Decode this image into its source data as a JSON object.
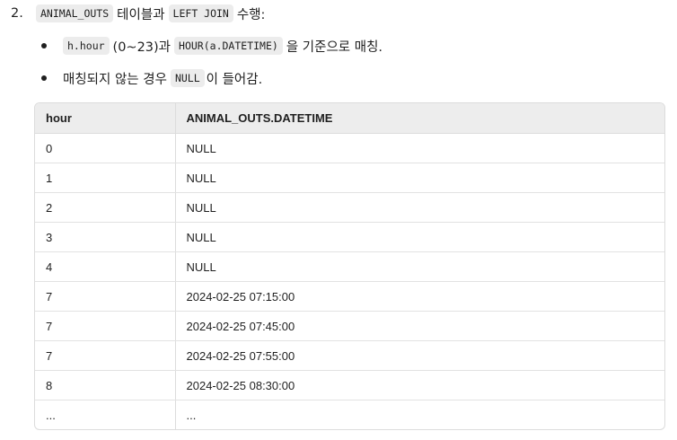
{
  "step": {
    "number": "2.",
    "code1": "ANIMAL_OUTS",
    "text1": "테이블과",
    "code2": "LEFT JOIN",
    "text2": "수행:"
  },
  "bullets": [
    {
      "code1": "h.hour",
      "text1": "(0~23)과",
      "code2": "HOUR(a.DATETIME)",
      "text2": "을 기준으로 매칭."
    },
    {
      "text1": "매칭되지 않는 경우",
      "code1": "NULL",
      "text2": "이 들어감."
    }
  ],
  "table": {
    "headers": [
      "hour",
      "ANIMAL_OUTS.DATETIME"
    ],
    "rows": [
      [
        "0",
        "NULL"
      ],
      [
        "1",
        "NULL"
      ],
      [
        "2",
        "NULL"
      ],
      [
        "3",
        "NULL"
      ],
      [
        "4",
        "NULL"
      ],
      [
        "7",
        "2024-02-25 07:15:00"
      ],
      [
        "7",
        "2024-02-25 07:45:00"
      ],
      [
        "7",
        "2024-02-25 07:55:00"
      ],
      [
        "8",
        "2024-02-25 08:30:00"
      ],
      [
        "...",
        "..."
      ]
    ]
  }
}
